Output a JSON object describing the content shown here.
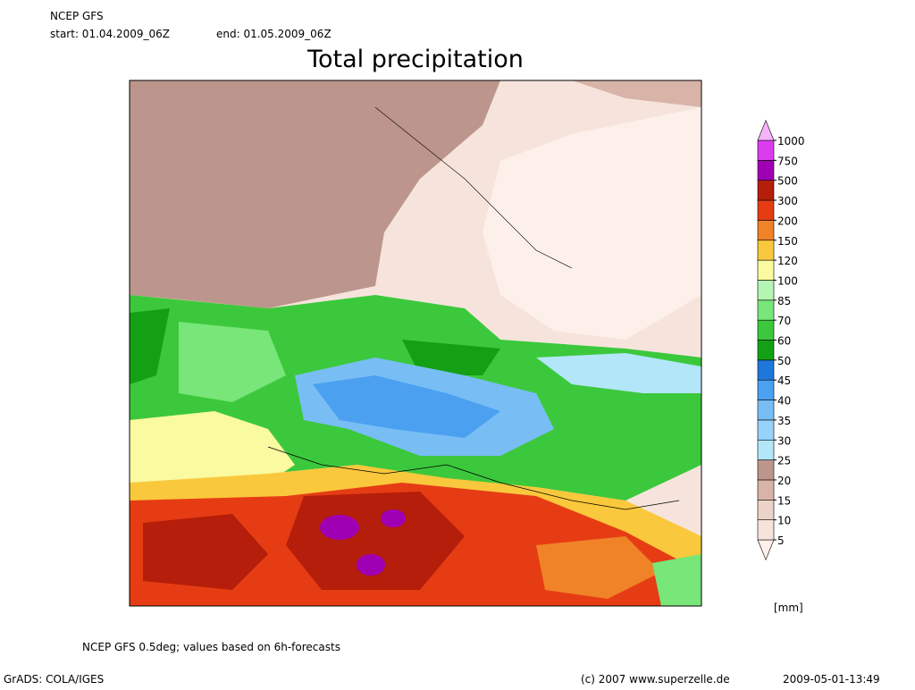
{
  "header": {
    "model": "NCEP GFS",
    "start": "start: 01.04.2009_06Z",
    "end": "end: 01.05.2009_06Z",
    "title": "Total precipitation"
  },
  "legend": {
    "levels": [
      5,
      10,
      15,
      20,
      25,
      30,
      35,
      40,
      45,
      50,
      60,
      70,
      85,
      100,
      120,
      150,
      200,
      300,
      500,
      750,
      1000
    ],
    "colors": [
      "#fdf0ea",
      "#f6e4dc",
      "#ecd2c8",
      "#d8b4a8",
      "#bc968c",
      "#b4e6fa",
      "#96d2fa",
      "#78bef5",
      "#4ba0f0",
      "#1e78dc",
      "#14a014",
      "#3cc83c",
      "#78e678",
      "#b4f5b4",
      "#fafaa0",
      "#fac83c",
      "#f08228",
      "#e63c14",
      "#b41e0a",
      "#a000b4",
      "#dc3cf0",
      "#f5b4fa"
    ],
    "unit": "[mm]"
  },
  "footer": {
    "note": "NCEP GFS 0.5deg; values based on 6h-forecasts",
    "software": "GrADS: COLA/IGES",
    "copyright": "(c) 2007 www.superzelle.de",
    "timestamp": "2009-05-01-13:49"
  }
}
